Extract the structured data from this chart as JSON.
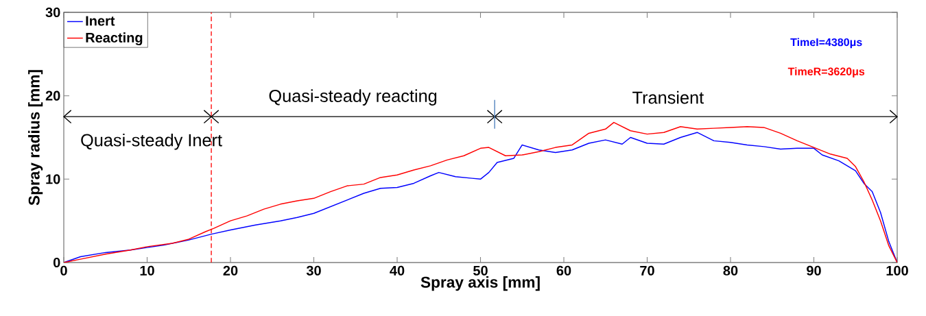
{
  "chart_data": {
    "type": "line",
    "xlabel": "Spray axis [mm]",
    "ylabel": "Spray radius [mm]",
    "xlim": [
      0,
      100
    ],
    "ylim": [
      0,
      30
    ],
    "xticks": [
      0,
      10,
      20,
      30,
      40,
      50,
      60,
      70,
      80,
      90,
      100
    ],
    "yticks": [
      0,
      10,
      20,
      30
    ],
    "grid": false,
    "legend": "top left",
    "line_style": "solid",
    "marker": "none",
    "series": [
      {
        "name": "Inert",
        "color": "#0000ff",
        "x": [
          0,
          2,
          5,
          8,
          10,
          12,
          15,
          17.7,
          20,
          23,
          26,
          28,
          30,
          32,
          34,
          36,
          38,
          40,
          42,
          44,
          45,
          47,
          49,
          50,
          51,
          52,
          54,
          55,
          57,
          59,
          61,
          63,
          65,
          67,
          68,
          70,
          72,
          74,
          76,
          78,
          80,
          82,
          84,
          86,
          88,
          90,
          91,
          93,
          95,
          96,
          97,
          98,
          99,
          100
        ],
        "values": [
          0,
          0.7,
          1.2,
          1.5,
          1.8,
          2.1,
          2.7,
          3.4,
          3.9,
          4.5,
          5.0,
          5.4,
          5.9,
          6.7,
          7.5,
          8.3,
          8.9,
          9.0,
          9.5,
          10.4,
          10.8,
          10.3,
          10.1,
          10.0,
          10.8,
          12.0,
          12.5,
          14.1,
          13.5,
          13.2,
          13.5,
          14.3,
          14.7,
          14.2,
          15.0,
          14.3,
          14.2,
          15.0,
          15.6,
          14.6,
          14.4,
          14.1,
          13.9,
          13.6,
          13.7,
          13.7,
          12.9,
          12.2,
          11.0,
          9.5,
          8.5,
          6.0,
          2.5,
          0
        ]
      },
      {
        "name": "Reacting",
        "color": "#ff0000",
        "x": [
          0,
          2,
          5,
          8,
          10,
          13,
          15,
          17,
          18,
          20,
          22,
          24,
          26,
          28,
          30,
          32,
          34,
          36,
          38,
          40,
          42,
          44,
          46,
          48,
          50,
          51,
          53,
          55,
          57,
          59,
          61,
          63,
          65,
          66,
          68,
          70,
          72,
          74,
          76,
          78,
          80,
          82,
          84,
          86,
          88,
          90,
          92,
          94,
          95,
          96,
          97,
          98,
          99,
          100
        ],
        "values": [
          0,
          0.4,
          1.0,
          1.5,
          1.9,
          2.3,
          2.8,
          3.7,
          4.1,
          5.0,
          5.6,
          6.4,
          7.0,
          7.4,
          7.7,
          8.5,
          9.2,
          9.4,
          10.2,
          10.5,
          11.1,
          11.6,
          12.3,
          12.8,
          13.7,
          13.8,
          12.8,
          12.9,
          13.3,
          13.8,
          14.1,
          15.5,
          16.0,
          16.8,
          15.8,
          15.4,
          15.6,
          16.3,
          16.0,
          16.1,
          16.2,
          16.3,
          16.2,
          15.5,
          14.6,
          13.8,
          13.0,
          12.5,
          11.5,
          9.7,
          7.5,
          5.0,
          2.0,
          0
        ]
      }
    ],
    "ref_lines": [
      {
        "axis": "x",
        "value": 17.7,
        "color": "#ff0000",
        "line_style": "dashed"
      }
    ],
    "annotations": [
      "Quasi-steady Inert",
      "Quasi-steady reacting",
      "Transient",
      "TimeI=4380μs",
      "TimeR=3620μs"
    ]
  }
}
